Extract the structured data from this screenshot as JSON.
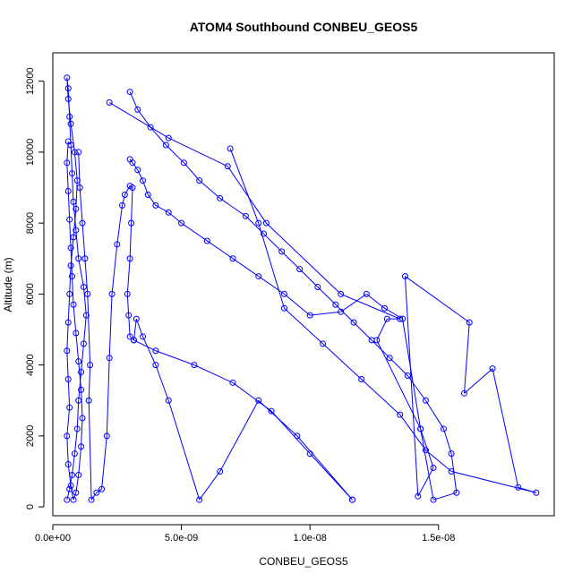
{
  "chart_data": {
    "type": "line",
    "title": "ATOM4 Southbound CONBEU_GEOS5",
    "xlabel": "CONBEU_GEOS5",
    "ylabel": "Altitude (m)",
    "xlim": [
      0,
      1.95e-08
    ],
    "ylim": [
      -250,
      12800
    ],
    "x_ticks": [
      0,
      5e-09,
      1e-08,
      1.5e-08
    ],
    "x_tick_labels": [
      "0.0e+00",
      "5.0e-09",
      "1.0e-08",
      "1.5e-08"
    ],
    "y_ticks": [
      0,
      2000,
      4000,
      6000,
      8000,
      10000,
      12000
    ],
    "y_tick_labels": [
      "0",
      "2000",
      "4000",
      "6000",
      "8000",
      "10000",
      "12000"
    ],
    "grid": false,
    "colors": {
      "series": "#0000ff",
      "axes": "#000000",
      "background": "#ffffff"
    },
    "series": [
      {
        "x": [
          5.5e-10,
          6.5e-10,
          7.5e-10,
          8.5e-10,
          9.5e-10,
          1e-09,
          1.1e-09,
          1.2e-09,
          1.3e-09,
          1.2e-09,
          1e-09,
          9e-10,
          8e-10,
          7.5e-10,
          7e-10,
          6.5e-10,
          6e-10,
          5.5e-10,
          6e-10,
          7e-10,
          8.5e-10,
          9.5e-10,
          9e-10,
          8e-10,
          7e-10,
          6.5e-10,
          6e-10,
          5.5e-10,
          6e-10,
          6.5e-10,
          5.5e-10,
          6e-10,
          7e-10,
          8e-10,
          9e-10,
          1e-09,
          1.1e-09,
          1.15e-09,
          1.1e-09,
          1e-09,
          9e-10,
          8e-10,
          7.5e-10,
          7e-10,
          6.5e-10,
          6e-10,
          5.5e-10,
          6e-10
        ],
        "y": [
          200,
          500,
          900,
          1500,
          2200,
          3000,
          3800,
          4600,
          5400,
          6200,
          7000,
          7800,
          8600,
          9400,
          10200,
          11000,
          11800,
          12100,
          11500,
          10800,
          10000,
          9200,
          8400,
          7600,
          6800,
          6000,
          5200,
          4400,
          3600,
          2800,
          2000,
          1200,
          600,
          200,
          400,
          900,
          1700,
          2500,
          3300,
          4100,
          4900,
          5700,
          6500,
          7300,
          8100,
          8900,
          9700,
          10300
        ]
      },
      {
        "x": [
          1e-09,
          1.05e-09,
          1.15e-09,
          1.25e-09,
          1.35e-09,
          1.45e-09,
          1.4e-09,
          1.5e-09,
          1.7e-09,
          1.9e-09,
          2.1e-09,
          2.2e-09,
          2.3e-09,
          2.5e-09,
          2.7e-09,
          2.8e-09,
          3e-09,
          3.1e-09,
          3.05e-09,
          3e-09,
          2.9e-09,
          2.95e-09,
          3e-09,
          3.15e-09,
          3.25e-09,
          3.5e-09,
          4e-09,
          4.5e-09,
          5.7e-09,
          6.5e-09,
          8e-09,
          9.5e-09,
          1.165e-08,
          1.165e-08,
          1e-08,
          8.5e-09,
          7e-09,
          5.5e-09,
          4e-09,
          3.15e-09
        ],
        "y": [
          10000,
          9000,
          8000,
          7000,
          6000,
          4000,
          3000,
          200,
          400,
          500,
          2000,
          4200,
          6000,
          7400,
          8500,
          8800,
          9050,
          9000,
          8000,
          7000,
          6000,
          5400,
          4800,
          4700,
          5300,
          4800,
          4000,
          3000,
          200,
          1000,
          3000,
          2000,
          200,
          200,
          1500,
          2700,
          3500,
          4000,
          4400,
          4700
        ]
      },
      {
        "x": [
          3e-09,
          3.3e-09,
          3.8e-09,
          4.4e-09,
          5.1e-09,
          5.7e-09,
          6.5e-09,
          7.5e-09,
          8.2e-09,
          8.9e-09,
          9.6e-09,
          1.03e-08,
          1.1e-08,
          1.17e-08,
          1.24e-08,
          1.31e-08,
          1.38e-08,
          1.45e-08,
          1.52e-08,
          1.55e-08,
          1.57e-08,
          1.48e-08,
          1.43e-08,
          1.36e-08,
          1.29e-08,
          1.22e-08,
          1.12e-08,
          1e-08,
          9e-09,
          8e-09,
          7e-09,
          6e-09,
          5e-09,
          4.5e-09,
          4e-09,
          3.7e-09,
          3.5e-09,
          3.3e-09,
          3.1e-09,
          3e-09
        ],
        "y": [
          11700,
          11200,
          10700,
          10200,
          9700,
          9200,
          8700,
          8200,
          7700,
          7200,
          6700,
          6200,
          5700,
          5200,
          4700,
          4200,
          3700,
          3000,
          2200,
          1500,
          400,
          200,
          2200,
          5300,
          5600,
          6000,
          5500,
          5400,
          6000,
          6500,
          7000,
          7500,
          8000,
          8300,
          8500,
          8800,
          9200,
          9500,
          9700,
          9800
        ]
      },
      {
        "x": [
          2.2e-09,
          4.5e-09,
          6.8e-09,
          8.3e-09,
          1.12e-08,
          1.35e-08,
          1.3e-08,
          1.26e-08,
          1.43e-08,
          1.48e-08,
          1.42e-08,
          1.37e-08,
          1.62e-08,
          1.6e-08,
          1.71e-08,
          1.81e-08,
          1.88e-08,
          1.55e-08,
          1.45e-08,
          1.35e-08,
          1.2e-08,
          1.05e-08,
          9e-09,
          8e-09,
          6.9e-09
        ],
        "y": [
          11400,
          10400,
          9600,
          8000,
          6000,
          5300,
          5300,
          4700,
          2200,
          1100,
          300,
          6500,
          5200,
          3200,
          3900,
          550,
          400,
          1000,
          1600,
          2600,
          3600,
          4600,
          5600,
          8000,
          10100
        ]
      }
    ]
  }
}
